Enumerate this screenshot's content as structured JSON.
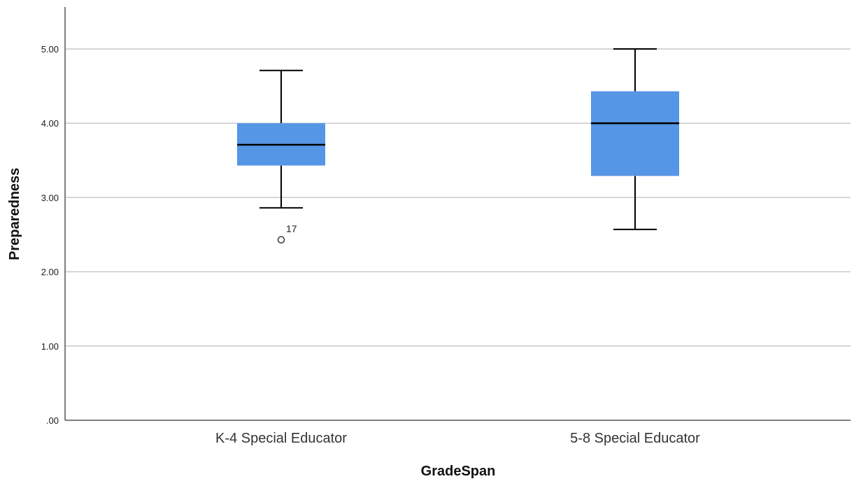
{
  "chart_data": {
    "type": "boxplot",
    "title": "",
    "xlabel": "GradeSpan",
    "ylabel": "Preparedness",
    "ylim": [
      0,
      5.5
    ],
    "yticks": [
      0,
      1,
      2,
      3,
      4,
      5
    ],
    "ytick_labels": [
      ".00",
      "1.00",
      "2.00",
      "3.00",
      "4.00",
      "5.00"
    ],
    "grid": true,
    "box_color": "#5596E6",
    "categories": [
      "K-4 Special Educator",
      "5-8 Special Educator"
    ],
    "boxes": [
      {
        "category": "K-4 Special Educator",
        "whisker_low": 2.86,
        "q1": 3.43,
        "median": 3.71,
        "q3": 4.0,
        "whisker_high": 4.71,
        "outliers": [
          {
            "value": 2.43,
            "label": "17"
          }
        ]
      },
      {
        "category": "5-8 Special Educator",
        "whisker_low": 2.57,
        "q1": 3.29,
        "median": 4.0,
        "q3": 4.43,
        "whisker_high": 5.0,
        "outliers": []
      }
    ]
  }
}
